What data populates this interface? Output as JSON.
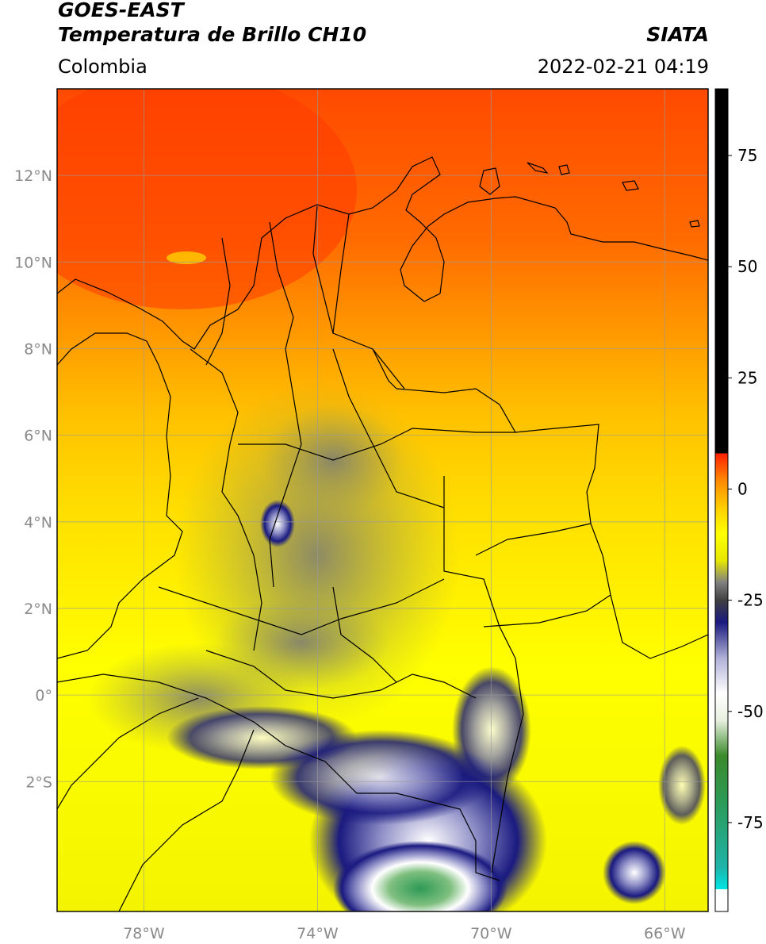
{
  "header": {
    "satellite": "GOES-EAST",
    "product": "Temperatura de Brillo CH10",
    "region": "Colombia",
    "agency": "SIATA",
    "timestamp": "2022-02-21 04:19"
  },
  "map": {
    "lon_range": [
      -80,
      -65
    ],
    "lat_range": [
      -5,
      14
    ],
    "lat_ticks": [
      {
        "value": 12,
        "label": "12°N"
      },
      {
        "value": 10,
        "label": "10°N"
      },
      {
        "value": 8,
        "label": "8°N"
      },
      {
        "value": 6,
        "label": "6°N"
      },
      {
        "value": 4,
        "label": "4°N"
      },
      {
        "value": 2,
        "label": "2°N"
      },
      {
        "value": 0,
        "label": "0°"
      },
      {
        "value": -2,
        "label": "2°S"
      }
    ],
    "lon_ticks": [
      {
        "value": -78,
        "label": "78°W"
      },
      {
        "value": -74,
        "label": "74°W"
      },
      {
        "value": -70,
        "label": "70°W"
      },
      {
        "value": -66,
        "label": "66°W"
      }
    ],
    "grid": true
  },
  "colorbar": {
    "range": [
      -95,
      90
    ],
    "ticks": [
      {
        "value": 75,
        "label": "75"
      },
      {
        "value": 50,
        "label": "50"
      },
      {
        "value": 25,
        "label": "25"
      },
      {
        "value": 0,
        "label": "0"
      },
      {
        "value": -25,
        "label": "-25"
      },
      {
        "value": -50,
        "label": "-50"
      },
      {
        "value": -75,
        "label": "-75"
      }
    ],
    "stops": [
      {
        "value": -95,
        "color": "#ffffff"
      },
      {
        "value": -90,
        "color": "#ffffff"
      },
      {
        "value": -90,
        "color": "#00e5e5"
      },
      {
        "value": -85,
        "color": "#1fb3a8"
      },
      {
        "value": -70,
        "color": "#2d9a55"
      },
      {
        "value": -60,
        "color": "#3a8a2a"
      },
      {
        "value": -52,
        "color": "#e8f0e0"
      },
      {
        "value": -46,
        "color": "#ffffff"
      },
      {
        "value": -38,
        "color": "#b0b0d8"
      },
      {
        "value": -30,
        "color": "#1a1a80"
      },
      {
        "value": -25,
        "color": "#404040"
      },
      {
        "value": -21,
        "color": "#808080"
      },
      {
        "value": -16,
        "color": "#e8e800"
      },
      {
        "value": -10,
        "color": "#ffff00"
      },
      {
        "value": -4,
        "color": "#ffcc00"
      },
      {
        "value": 2,
        "color": "#ff8800"
      },
      {
        "value": 8,
        "color": "#ff2000"
      },
      {
        "value": 8,
        "color": "#000000"
      },
      {
        "value": 90,
        "color": "#000000"
      }
    ]
  }
}
